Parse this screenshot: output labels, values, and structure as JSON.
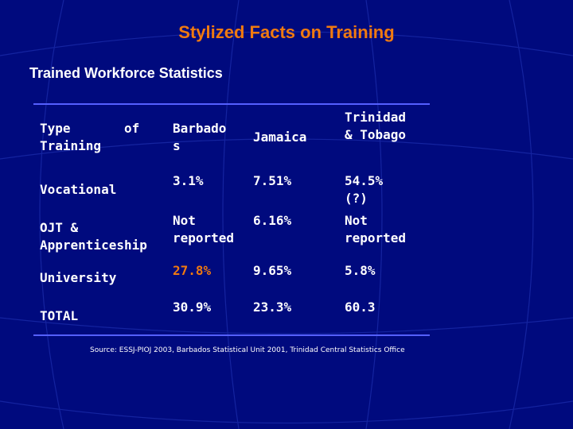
{
  "title": "Stylized Facts on Training",
  "subtitle": "Trained Workforce Statistics",
  "table": {
    "header": {
      "type": "Type       of\nTraining",
      "barbados": "Barbado\ns",
      "jamaica": "Jamaica",
      "tt": "Trinidad\n& Tobago"
    },
    "rows": [
      {
        "label": "Vocational",
        "barbados": "3.1%",
        "jamaica": "7.51%",
        "tt": "54.5%\n(?)"
      },
      {
        "label": "OJT &\nApprenticeship",
        "barbados": "Not\nreported",
        "jamaica": "6.16%",
        "tt": "Not\nreported"
      },
      {
        "label": "University",
        "barbados": "27.8%",
        "jamaica": "9.65%",
        "tt": "5.8%"
      },
      {
        "label": "TOTAL",
        "barbados": "30.9%",
        "jamaica": "23.3%",
        "tt": "60.3"
      }
    ]
  },
  "source": "Source: ESSJ-PIOJ 2003, Barbados Statistical Unit 2001, Trinidad Central Statistics Office",
  "colors": {
    "background": "#000a7e",
    "title": "#f07a10",
    "rule": "#5560ff",
    "accent_value": "#f07a10"
  }
}
